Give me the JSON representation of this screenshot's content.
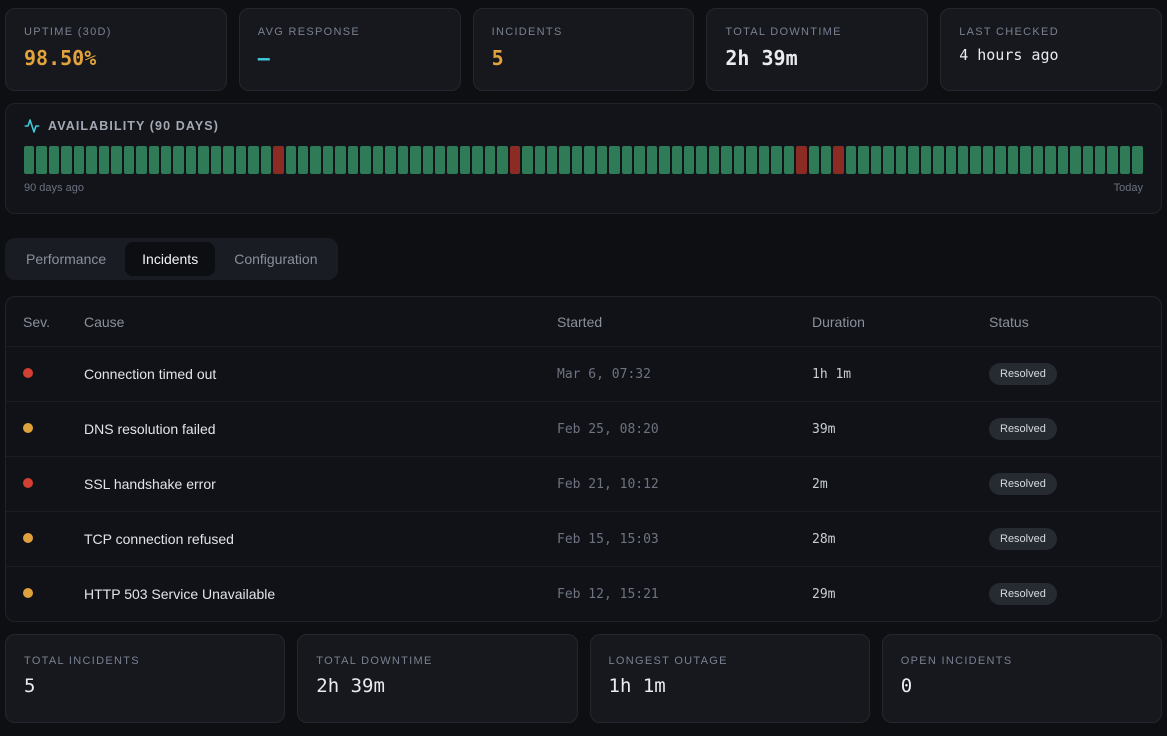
{
  "stats_top": [
    {
      "label": "UPTIME (30D)",
      "value": "98.50%",
      "color": "#e2a33c"
    },
    {
      "label": "AVG RESPONSE",
      "value": "—",
      "color": "#3fc6d8"
    },
    {
      "label": "INCIDENTS",
      "value": "5",
      "color": "#e2a33c"
    },
    {
      "label": "TOTAL DOWNTIME",
      "value": "2h 39m",
      "color": "#e9ebee"
    },
    {
      "label": "LAST CHECKED",
      "value": "4 hours ago",
      "color": "#e9ebee"
    }
  ],
  "availability": {
    "title": "AVAILABILITY (90 DAYS)",
    "days": 90,
    "down_indices": [
      20,
      39,
      62,
      65
    ],
    "up_color": "#2f7b57",
    "down_color": "#8b2b24",
    "left_label": "90 days ago",
    "right_label": "Today"
  },
  "tabs": [
    {
      "label": "Performance",
      "active": false
    },
    {
      "label": "Incidents",
      "active": true
    },
    {
      "label": "Configuration",
      "active": false
    }
  ],
  "incidents_table": {
    "columns": [
      "Sev.",
      "Cause",
      "Started",
      "Duration",
      "Status"
    ],
    "rows": [
      {
        "severity": "critical",
        "severity_color": "#d23f33",
        "cause": "Connection timed out",
        "started": "Mar 6, 07:32",
        "duration": "1h 1m",
        "status": "Resolved"
      },
      {
        "severity": "warning",
        "severity_color": "#dfa13c",
        "cause": "DNS resolution failed",
        "started": "Feb 25, 08:20",
        "duration": "39m",
        "status": "Resolved"
      },
      {
        "severity": "critical",
        "severity_color": "#d23f33",
        "cause": "SSL handshake error",
        "started": "Feb 21, 10:12",
        "duration": "2m",
        "status": "Resolved"
      },
      {
        "severity": "warning",
        "severity_color": "#dfa13c",
        "cause": "TCP connection refused",
        "started": "Feb 15, 15:03",
        "duration": "28m",
        "status": "Resolved"
      },
      {
        "severity": "warning",
        "severity_color": "#dfa13c",
        "cause": "HTTP 503 Service Unavailable",
        "started": "Feb 12, 15:21",
        "duration": "29m",
        "status": "Resolved"
      }
    ]
  },
  "stats_bottom": [
    {
      "label": "TOTAL INCIDENTS",
      "value": "5"
    },
    {
      "label": "TOTAL DOWNTIME",
      "value": "2h 39m"
    },
    {
      "label": "LONGEST OUTAGE",
      "value": "1h 1m"
    },
    {
      "label": "OPEN INCIDENTS",
      "value": "0"
    }
  ]
}
